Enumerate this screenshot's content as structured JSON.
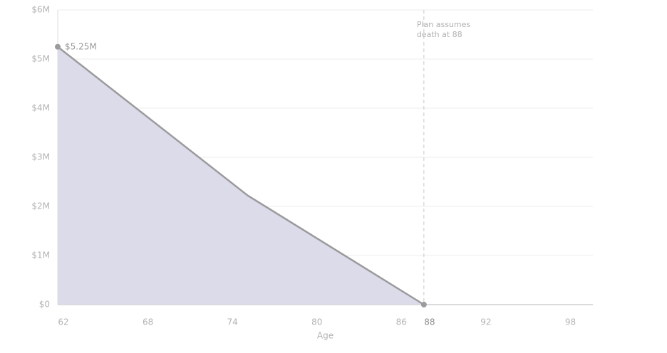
{
  "chart_data": {
    "type": "area",
    "x_label": "Age",
    "x": [
      62,
      75.5,
      88
    ],
    "values": [
      5250000,
      2220000,
      0
    ],
    "value_labels": [
      "$5.25M",
      null,
      null
    ],
    "color": "#9b9b9e",
    "fill_color": "#dcdbe9",
    "xlim": [
      62,
      100
    ],
    "xticks": [
      62,
      68,
      74,
      80,
      86,
      88,
      92,
      98
    ],
    "ylim": [
      0,
      6000000
    ],
    "yticks": [
      {
        "value": 0,
        "label": "$0"
      },
      {
        "value": 1000000,
        "label": "$1M"
      },
      {
        "value": 2000000,
        "label": "$2M"
      },
      {
        "value": 3000000,
        "label": "$3M"
      },
      {
        "value": 4000000,
        "label": "$4M"
      },
      {
        "value": 5000000,
        "label": "$5M"
      },
      {
        "value": 6000000,
        "label": "$6M"
      }
    ],
    "grid": true,
    "marker_x": 88,
    "annotation": [
      "Plan assumes",
      "death at 88"
    ]
  }
}
